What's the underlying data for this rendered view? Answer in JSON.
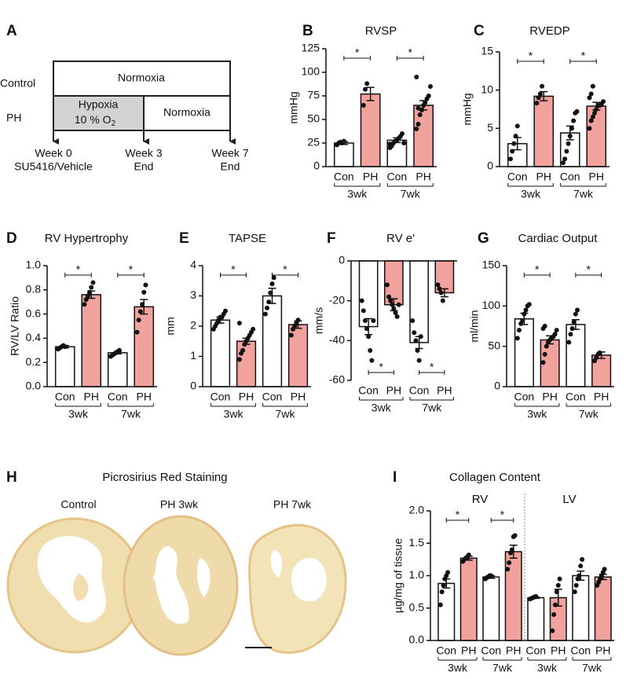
{
  "diagram": {
    "panel": "A",
    "rows": [
      "Control",
      "PH"
    ],
    "control_box": "Normoxia",
    "hypoxia_box": {
      "line1": "Hypoxia",
      "line2": "10 % O",
      "subscript": "2"
    },
    "ph_box": "Normoxia",
    "timepoints": [
      {
        "week": "Week 0",
        "note": "SU5416/Vehicle"
      },
      {
        "week": "Week 3",
        "note": "End"
      },
      {
        "week": "Week 7",
        "note": "End"
      }
    ]
  },
  "images": {
    "panel": "H",
    "title": "Picrosirius Red Staining",
    "labels": [
      "Control",
      "PH 3wk",
      "PH 7wk"
    ]
  },
  "chart_data": [
    {
      "type": "bar",
      "panel": "B",
      "title": "RVSP",
      "y_label": "mmHg",
      "categories": [
        "Con",
        "PH",
        "Con",
        "PH"
      ],
      "groups": [
        "3wk",
        "7wk"
      ],
      "values": [
        25,
        77,
        28,
        65
      ],
      "errors": [
        1.5,
        7,
        2.5,
        5
      ],
      "colors": [
        "#ffffff",
        "#f2a29c",
        "#ffffff",
        "#f2a29c"
      ],
      "points": [
        [
          23,
          25,
          26,
          25,
          27
        ],
        [
          65,
          82,
          88
        ],
        [
          20,
          22,
          25,
          27,
          28,
          30,
          32,
          35,
          25,
          24
        ],
        [
          40,
          45,
          55,
          60,
          65,
          68,
          72,
          75,
          85,
          95,
          62
        ]
      ],
      "ylim": [
        0,
        125
      ],
      "yticks": [
        0,
        25,
        50,
        75,
        100,
        125
      ],
      "significance": [
        "*",
        "*"
      ],
      "significance_position": "top"
    },
    {
      "type": "bar",
      "panel": "C",
      "title": "RVEDP",
      "y_label": "mmHg",
      "categories": [
        "Con",
        "PH",
        "Con",
        "PH"
      ],
      "groups": [
        "3wk",
        "7wk"
      ],
      "values": [
        3.0,
        9.2,
        4.4,
        7.9
      ],
      "errors": [
        0.8,
        0.6,
        0.9,
        0.5
      ],
      "colors": [
        "#ffffff",
        "#f2a29c",
        "#ffffff",
        "#f2a29c"
      ],
      "points": [
        [
          1,
          2,
          3,
          4,
          5.3
        ],
        [
          8.3,
          9,
          9.5,
          10.5
        ],
        [
          0.5,
          1,
          2,
          3,
          4,
          5,
          6,
          7,
          7.2
        ],
        [
          5,
          6,
          6.5,
          7,
          7.5,
          8,
          8,
          8.2,
          8.5,
          9,
          9.5,
          10.5
        ]
      ],
      "ylim": [
        0,
        15
      ],
      "yticks": [
        0,
        5,
        10,
        15
      ],
      "significance": [
        "*",
        "*"
      ],
      "significance_position": "top"
    },
    {
      "type": "bar",
      "panel": "D",
      "title": "RV Hypertrophy",
      "y_label": "RV/LV Ratio",
      "categories": [
        "Con",
        "PH",
        "Con",
        "PH"
      ],
      "groups": [
        "3wk",
        "7wk"
      ],
      "values": [
        0.33,
        0.76,
        0.28,
        0.66
      ],
      "errors": [
        0.01,
        0.03,
        0.01,
        0.06
      ],
      "colors": [
        "#ffffff",
        "#f2a29c",
        "#ffffff",
        "#f2a29c"
      ],
      "points": [
        [
          0.31,
          0.32,
          0.33,
          0.34,
          0.33
        ],
        [
          0.68,
          0.72,
          0.75,
          0.78,
          0.82,
          0.86
        ],
        [
          0.25,
          0.26,
          0.27,
          0.28,
          0.29,
          0.3
        ],
        [
          0.45,
          0.55,
          0.62,
          0.68,
          0.78,
          0.84
        ]
      ],
      "ylim": [
        0,
        1
      ],
      "yticks": [
        {
          "value": 0,
          "label": "0.0"
        },
        0.2,
        0.4,
        0.6,
        0.8,
        {
          "value": 1,
          "label": "1.0"
        }
      ],
      "significance": [
        "*",
        "*"
      ],
      "significance_position": "top"
    },
    {
      "type": "bar",
      "panel": "E",
      "title": "TAPSE",
      "y_label": "mm",
      "categories": [
        "Con",
        "PH",
        "Con",
        "PH"
      ],
      "groups": [
        "3wk",
        "7wk"
      ],
      "values": [
        2.2,
        1.5,
        3.0,
        2.05
      ],
      "errors": [
        0.1,
        0.1,
        0.25,
        0.12
      ],
      "colors": [
        "#ffffff",
        "#f2a29c",
        "#ffffff",
        "#f2a29c"
      ],
      "points": [
        [
          1.9,
          2.0,
          2.1,
          2.2,
          2.3,
          2.3,
          2.4,
          2.5
        ],
        [
          0.9,
          1.1,
          1.2,
          1.4,
          1.5,
          1.6,
          1.7,
          1.8,
          1.9,
          2.1
        ],
        [
          2.4,
          2.6,
          2.8,
          3.1,
          3.4,
          3.6
        ],
        [
          1.7,
          1.9,
          2.0,
          2.1,
          2.2
        ]
      ],
      "ylim": [
        0,
        4
      ],
      "yticks": [
        0,
        1,
        2,
        3,
        4
      ],
      "significance": [
        "*",
        "*"
      ],
      "significance_position": "top"
    },
    {
      "type": "bar",
      "panel": "F",
      "title": "RV e'",
      "y_label": "mm/s",
      "categories": [
        "Con",
        "PH",
        "Con",
        "PH"
      ],
      "groups": [
        "3wk",
        "7wk"
      ],
      "values": [
        -33,
        -22,
        -41,
        -16
      ],
      "errors": [
        4,
        3,
        3,
        2
      ],
      "colors": [
        "#ffffff",
        "#f2a29c",
        "#ffffff",
        "#f2a29c"
      ],
      "points": [
        [
          -20,
          -25,
          -30,
          -34,
          -38,
          -45,
          -50,
          -30
        ],
        [
          -12,
          -18,
          -20,
          -22,
          -24,
          -26,
          -28,
          -22
        ],
        [
          -30,
          -36,
          -40,
          -45,
          -50,
          -38
        ],
        [
          -12,
          -14,
          -16,
          -20
        ]
      ],
      "ylim": [
        -60,
        0
      ],
      "yticks": [
        -60,
        -40,
        -20,
        0
      ],
      "significance": [
        "*",
        "*"
      ],
      "significance_position": "bottom"
    },
    {
      "type": "bar",
      "panel": "G",
      "title": "Cardiac Output",
      "y_label": "ml/min",
      "categories": [
        "Con",
        "PH",
        "Con",
        "PH"
      ],
      "groups": [
        "3wk",
        "7wk"
      ],
      "values": [
        84,
        58,
        77,
        39
      ],
      "errors": [
        7,
        5,
        6,
        4
      ],
      "colors": [
        "#ffffff",
        "#f2a29c",
        "#ffffff",
        "#f2a29c"
      ],
      "points": [
        [
          60,
          70,
          78,
          82,
          90,
          95,
          100,
          102
        ],
        [
          30,
          40,
          50,
          55,
          58,
          60,
          62,
          65,
          70,
          72,
          75
        ],
        [
          55,
          65,
          72,
          80,
          90,
          95
        ],
        [
          32,
          36,
          40,
          42
        ]
      ],
      "ylim": [
        0,
        150
      ],
      "yticks": [
        0,
        50,
        100,
        150
      ],
      "significance": [
        "*",
        "*"
      ],
      "significance_position": "top"
    },
    {
      "type": "bar",
      "panel": "I",
      "title": "Collagen Content",
      "y_label": "µg/mg of tissue",
      "categories": [
        "Con",
        "PH",
        "Con",
        "PH",
        "Con",
        "PH",
        "Con",
        "PH"
      ],
      "groups": [
        "3wk",
        "7wk",
        "3wk",
        "7wk"
      ],
      "sections": [
        "RV",
        "LV"
      ],
      "values": [
        0.88,
        1.27,
        0.98,
        1.37,
        0.66,
        0.66,
        1.0,
        0.98
      ],
      "errors": [
        0.07,
        0.03,
        0.02,
        0.1,
        0.01,
        0.13,
        0.07,
        0.04
      ],
      "colors": [
        "#ffffff",
        "#f2a29c",
        "#ffffff",
        "#f2a29c",
        "#ffffff",
        "#f2a29c",
        "#ffffff",
        "#f2a29c"
      ],
      "points": [
        [
          0.55,
          0.75,
          0.85,
          0.95,
          1.0,
          1.05
        ],
        [
          1.22,
          1.25,
          1.27,
          1.29,
          1.32
        ],
        [
          0.95,
          0.97,
          0.98,
          1.0,
          1.0
        ],
        [
          1.1,
          1.2,
          1.35,
          1.4,
          1.6,
          1.62
        ],
        [
          0.64,
          0.65,
          0.66,
          0.67,
          0.68
        ],
        [
          0.15,
          0.4,
          0.55,
          0.75,
          0.85,
          0.95
        ],
        [
          0.75,
          0.85,
          0.95,
          1.0,
          1.15,
          1.25
        ],
        [
          0.85,
          0.9,
          0.95,
          1.0,
          1.05,
          1.1
        ]
      ],
      "ylim": [
        0,
        2
      ],
      "yticks": [
        {
          "value": 0,
          "label": "0.0"
        },
        0.5,
        {
          "value": 1,
          "label": "1.0"
        },
        1.5,
        {
          "value": 2,
          "label": "2.0"
        }
      ],
      "significance": [
        "*",
        "*",
        null,
        null
      ],
      "significance_position": "top"
    }
  ]
}
